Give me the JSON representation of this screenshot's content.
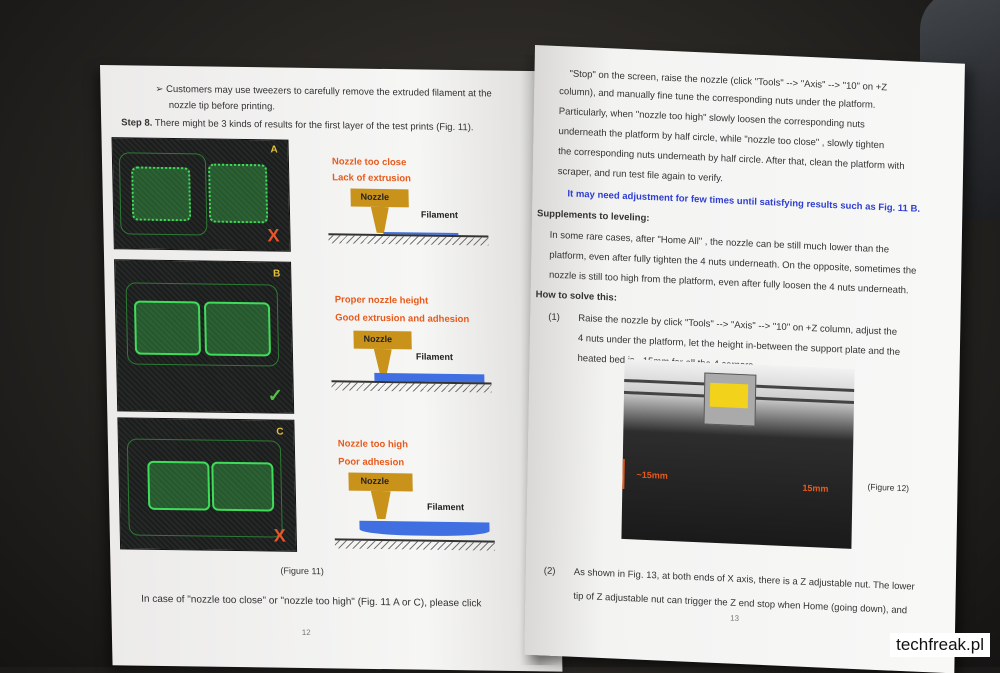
{
  "left_page": {
    "bullet": "➢ Customers may use tweezers to carefully remove the extruded filament at the",
    "bullet_cont": "nozzle tip before printing.",
    "step_label": "Step 8.",
    "step_text": "There might be 3 kinds of results for the first layer of the test prints (Fig. 11).",
    "panels": [
      {
        "letter": "A",
        "mark": "X",
        "title1": "Nozzle too close",
        "title2": "Lack of extrusion"
      },
      {
        "letter": "B",
        "mark": "✓",
        "title1": "Proper nozzle height",
        "title2": "Good extrusion and adhesion"
      },
      {
        "letter": "C",
        "mark": "X",
        "title1": "Nozzle too high",
        "title2": "Poor adhesion"
      }
    ],
    "nozzle_label": "Nozzle",
    "filament_label": "Filament",
    "caption": "(Figure 11)",
    "bottom_text": "In case of  \"nozzle too close\"  or  \"nozzle too high\" (Fig. 11 A or C), please click",
    "page_number": "12"
  },
  "right_page": {
    "lines": [
      "\"Stop\"  on the screen, raise the nozzle (click  \"Tools\" --> \"Axis\" --> \"10\"  on +Z",
      "column), and manually fine tune the corresponding nuts under the platform.",
      "Particularly, when  \"nozzle too high\"  slowly loosen the corresponding nuts",
      "underneath the platform by half circle, while  \"nozzle too close\" ,  slowly tighten",
      "the corresponding nuts underneath by half circle. After that, clean the platform with",
      "scraper, and run test file again to verify."
    ],
    "blue_note": "It may need adjustment for few times until satisfying results such as Fig. 11 B.",
    "supplements_heading": "Supplements to leveling:",
    "supp_lines": [
      "In some rare cases, after  \"Home All\" , the nozzle can be still much lower than the",
      "platform, even after fully tighten the 4 nuts underneath. On the opposite, sometimes the",
      "nozzle is still too high from the platform, even after fully loosen the 4 nuts underneath."
    ],
    "how_heading": "How to solve this:",
    "step1_num": "(1)",
    "step1_lines": [
      "Raise the nozzle by click  \"Tools\" --> \"Axis\" --> \"10\"  on +Z column, adjust the",
      "4 nuts under the platform, let the height in-between the support plate and the",
      "heated bed is ~15mm for all the 4 corners."
    ],
    "figure12_caption": "(Figure 12)",
    "dim_left": "~15mm",
    "dim_right": "15mm",
    "step2_num": "(2)",
    "step2_lines": [
      "As shown in Fig. 13, at both ends of X axis, there is a Z adjustable nut. The lower",
      "tip of Z adjustable nut can trigger the Z end stop when Home (going down), and"
    ],
    "page_number": "13"
  },
  "watermark": "techfreak.pl"
}
